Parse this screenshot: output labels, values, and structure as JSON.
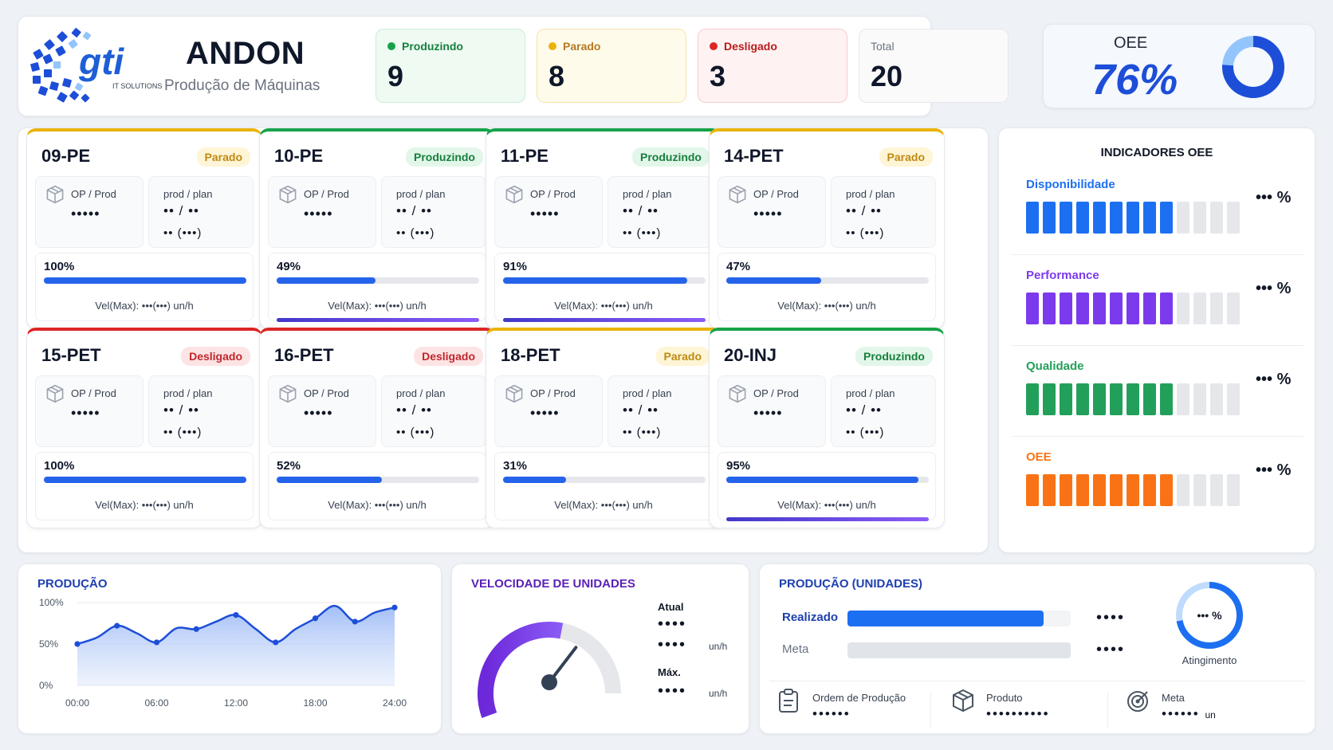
{
  "header": {
    "logo_text": "gti",
    "logo_sub": "IT SOLUTIONS",
    "title": "ANDON",
    "subtitle": "Produção de Máquinas"
  },
  "stats": {
    "produzindo": {
      "label": "Produzindo",
      "value": "9"
    },
    "parado": {
      "label": "Parado",
      "value": "8"
    },
    "desligado": {
      "label": "Desligado",
      "value": "3"
    },
    "total": {
      "label": "Total",
      "value": "20"
    }
  },
  "oee": {
    "label": "OEE",
    "value": "76%",
    "fraction": 0.76
  },
  "colors": {
    "produzindo": "#16a34a",
    "parado": "#eab308",
    "desligado": "#dc2626",
    "accent": "#2563eb"
  },
  "card_labels": {
    "op_prod": "OP / Prod",
    "prod_plan": "prod / plan",
    "mask_op": "•••••",
    "mask_prod": "•• / ••",
    "mask_plan": "•• (•••)",
    "vel": "Vel(Max): •••(•••) un/h"
  },
  "machines": [
    {
      "name": "09-PE",
      "status": "Parado",
      "progress": "100%",
      "progress_value": 100
    },
    {
      "name": "10-PE",
      "status": "Produzindo",
      "progress": "49%",
      "progress_value": 49
    },
    {
      "name": "11-PE",
      "status": "Produzindo",
      "progress": "91%",
      "progress_value": 91
    },
    {
      "name": "14-PET",
      "status": "Parado",
      "progress": "47%",
      "progress_value": 47
    },
    {
      "name": "15-PET",
      "status": "Desligado",
      "progress": "100%",
      "progress_value": 100
    },
    {
      "name": "16-PET",
      "status": "Desligado",
      "progress": "52%",
      "progress_value": 52
    },
    {
      "name": "18-PET",
      "status": "Parado",
      "progress": "31%",
      "progress_value": 31
    },
    {
      "name": "20-INJ",
      "status": "Produzindo",
      "progress": "95%",
      "progress_value": 95
    }
  ],
  "indicators": {
    "title": "INDICADORES OEE",
    "items": [
      {
        "name": "Disponibilidade",
        "value": "••• %",
        "color": "#1d6ff2",
        "filled_segments": 9,
        "total_segments": 13
      },
      {
        "name": "Performance",
        "value": "••• %",
        "color": "#7c3aed",
        "filled_segments": 9,
        "total_segments": 13
      },
      {
        "name": "Qualidade",
        "value": "••• %",
        "color": "#22a05a",
        "filled_segments": 9,
        "total_segments": 13
      },
      {
        "name": "OEE",
        "value": "••• %",
        "color": "#f97316",
        "filled_segments": 9,
        "total_segments": 13
      }
    ]
  },
  "production_chart": {
    "title": "PRODUÇÃO",
    "y_ticks": [
      "100%",
      "50%",
      "0%"
    ],
    "x_ticks": [
      "00:00",
      "06:00",
      "12:00",
      "18:00",
      "24:00"
    ]
  },
  "chart_data": {
    "type": "area",
    "title": "PRODUÇÃO",
    "x": [
      0,
      1.5,
      3,
      4.5,
      6,
      7.5,
      9,
      10.5,
      12,
      13.5,
      15,
      16.5,
      18,
      19.5,
      21,
      22.5,
      24
    ],
    "values": [
      50,
      58,
      72,
      63,
      52,
      69,
      68,
      77,
      85,
      68,
      52,
      68,
      81,
      96,
      77,
      88,
      94
    ],
    "xlim": [
      0,
      24
    ],
    "ylim": [
      0,
      100
    ],
    "color": "#1d4ed8",
    "grid": true
  },
  "velocity": {
    "title": "VELOCIDADE DE UNIDADES",
    "atual_label": "Atual",
    "atual_mask1": "••••",
    "atual_mask2": "••••",
    "max_label": "Máx.",
    "max_mask": "••••",
    "unit": "un/h",
    "gauge_fraction": 0.55
  },
  "units": {
    "title": "PRODUÇÃO (UNIDADES)",
    "realizado_label": "Realizado",
    "realizado_mask": "••••",
    "realizado_fraction": 0.88,
    "meta_label": "Meta",
    "meta_mask": "••••",
    "meta_fraction": 1.0,
    "atingimento_value": "••• %",
    "atingimento_fraction": 0.72,
    "atingimento_label": "Atingimento",
    "footer": [
      {
        "label": "Ordem de Produção",
        "mask": "••••••",
        "icon": "clipboard-icon"
      },
      {
        "label": "Produto",
        "mask": "••••••••••",
        "icon": "box-icon"
      },
      {
        "label": "Meta",
        "mask": "••••••",
        "unit": "un",
        "icon": "target-icon"
      }
    ]
  }
}
